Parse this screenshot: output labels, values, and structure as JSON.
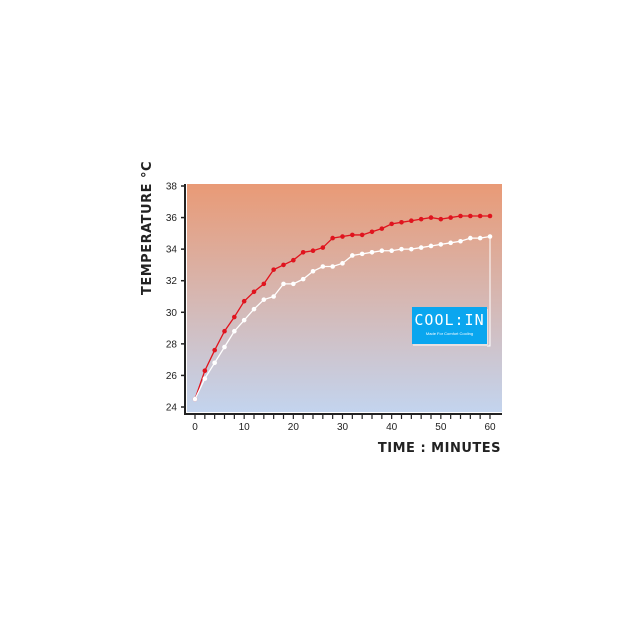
{
  "chart_data": {
    "type": "line",
    "xlabel": "TIME : MINUTES",
    "ylabel": "TEMPERATURE °C",
    "xlim": [
      0,
      60
    ],
    "ylim": [
      24,
      38
    ],
    "xticks": [
      0,
      10,
      20,
      30,
      40,
      50,
      60
    ],
    "yticks": [
      24,
      26,
      28,
      30,
      32,
      34,
      36,
      38
    ],
    "grid": false,
    "background_gradient": [
      "#e99a76",
      "#c3d4ee"
    ],
    "x": [
      0,
      2,
      4,
      6,
      8,
      10,
      12,
      14,
      16,
      18,
      20,
      22,
      24,
      26,
      28,
      30,
      32,
      34,
      36,
      38,
      40,
      42,
      44,
      46,
      48,
      50,
      52,
      54,
      56,
      58,
      60
    ],
    "series": [
      {
        "color": "#e0141e",
        "values": [
          24.5,
          26.3,
          27.6,
          28.8,
          29.7,
          30.7,
          31.3,
          31.8,
          32.7,
          33.0,
          33.3,
          33.8,
          33.9,
          34.1,
          34.7,
          34.8,
          34.9,
          34.9,
          35.1,
          35.3,
          35.6,
          35.7,
          35.8,
          35.9,
          36.0,
          35.9,
          36.0,
          36.1,
          36.1,
          36.1,
          36.1
        ]
      },
      {
        "color": "#ffffff",
        "values": [
          24.5,
          25.8,
          26.8,
          27.8,
          28.8,
          29.5,
          30.2,
          30.8,
          31.0,
          31.8,
          31.8,
          32.1,
          32.6,
          32.9,
          32.9,
          33.1,
          33.6,
          33.7,
          33.8,
          33.9,
          33.9,
          34.0,
          34.0,
          34.1,
          34.2,
          34.3,
          34.4,
          34.5,
          34.7,
          34.7,
          34.8
        ]
      }
    ]
  },
  "logo": {
    "brand": "COOL:IN",
    "tagline": "Made For Comfort Cooling",
    "color": "#0aa6ef"
  }
}
